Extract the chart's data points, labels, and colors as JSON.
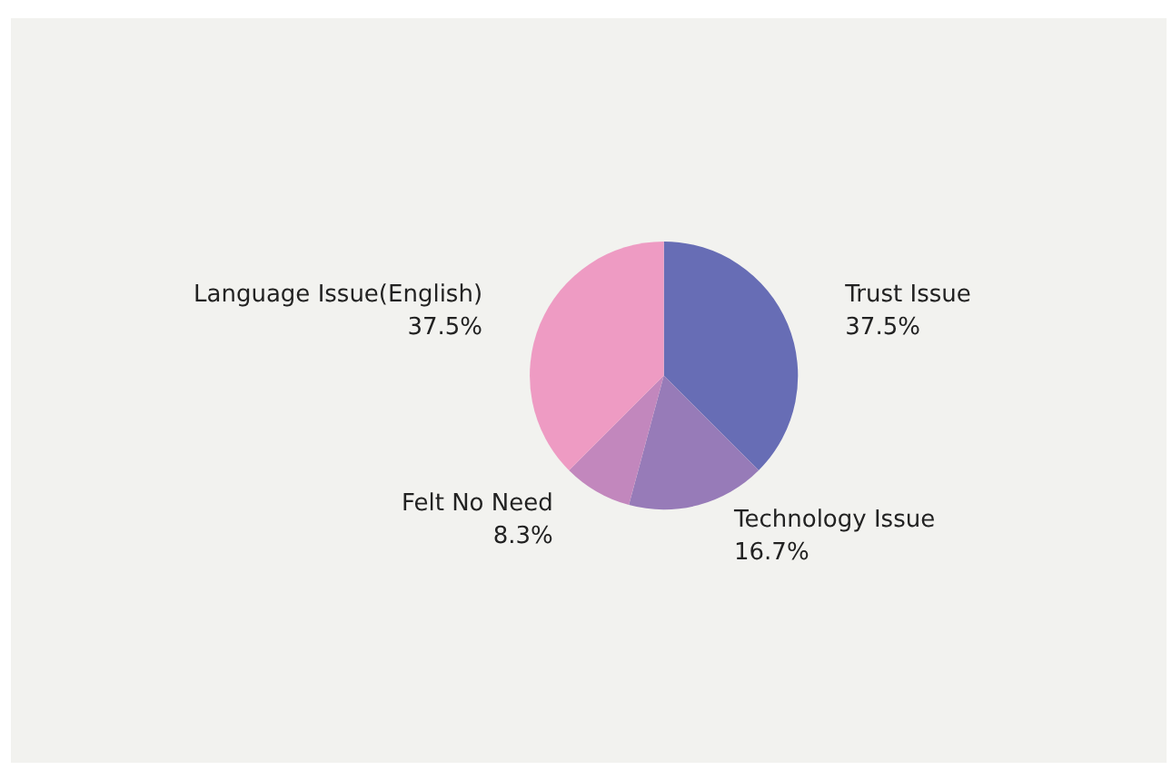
{
  "chart_data": {
    "type": "pie",
    "categories": [
      "Trust Issue",
      "Technology Issue",
      "Felt No Need",
      "Language Issue(English)"
    ],
    "values": [
      37.5,
      16.7,
      8.3,
      37.5
    ],
    "value_labels": [
      "37.5%",
      "16.7%",
      "8.3%",
      "37.5%"
    ],
    "colors": [
      "#676db5",
      "#977bb8",
      "#c287bd",
      "#ee9bc3"
    ],
    "legend": false
  }
}
